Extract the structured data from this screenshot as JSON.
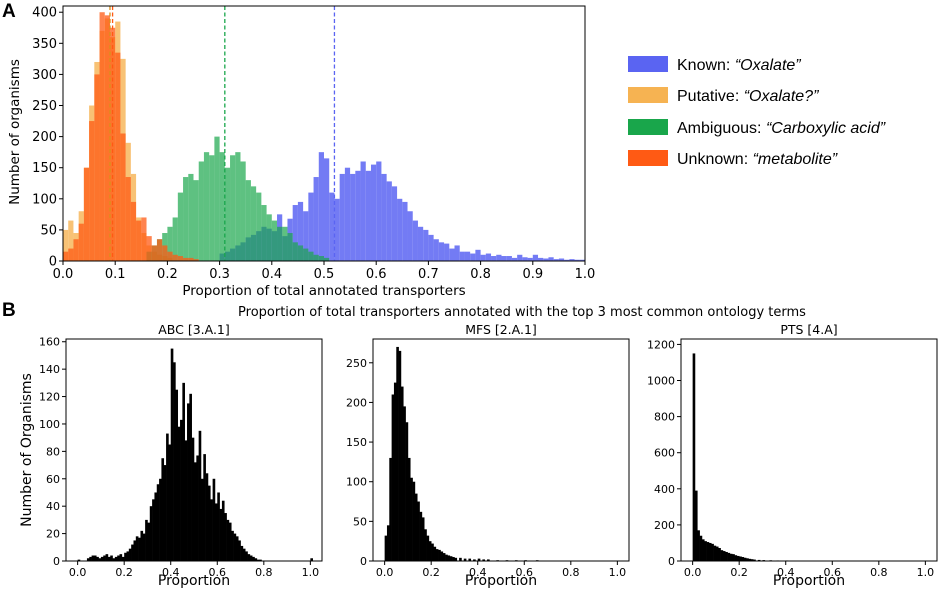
{
  "panel_a": {
    "letter": "A",
    "ylabel": "Number of organisms",
    "xlabel": "Proportion of total annotated transporters",
    "xticks": [
      "0.0",
      "0.1",
      "0.2",
      "0.3",
      "0.4",
      "0.5",
      "0.6",
      "0.7",
      "0.8",
      "0.9",
      "1.0"
    ],
    "yticks": [
      "0",
      "50",
      "100",
      "150",
      "200",
      "250",
      "300",
      "350",
      "400"
    ],
    "legend": [
      {
        "prefix": "Known: ",
        "term": "“Oxalate”",
        "color": "#5a64f2"
      },
      {
        "prefix": "Putative: ",
        "term": "“Oxalate?”",
        "color": "#f6b352"
      },
      {
        "prefix": "Ambiguous: ",
        "term": "“Carboxylic acid”",
        "color": "#19a64b"
      },
      {
        "prefix": "Unknown: ",
        "term": "“metabolite”",
        "color": "#ff5a14"
      }
    ]
  },
  "panel_b": {
    "letter": "B",
    "suptitle": "Proportion of total transporters annotated with the top 3 most common ontology terms",
    "ylabel": "Number of Organisms",
    "xlabel": "Proportion",
    "xticks": [
      "0.0",
      "0.2",
      "0.4",
      "0.6",
      "0.8",
      "1.0"
    ],
    "subplots": [
      {
        "title": "ABC [3.A.1]",
        "yticks": [
          "0",
          "20",
          "40",
          "60",
          "80",
          "100",
          "120",
          "140",
          "160"
        ]
      },
      {
        "title": "MFS [2.A.1]",
        "yticks": [
          "0",
          "50",
          "100",
          "150",
          "200",
          "250"
        ]
      },
      {
        "title": "PTS [4.A]",
        "yticks": [
          "0",
          "200",
          "400",
          "600",
          "800",
          "1000",
          "1200"
        ]
      }
    ]
  },
  "chart_data": [
    {
      "type": "bar",
      "subtype": "overlapping-histogram",
      "xlabel": "Proportion of total annotated transporters",
      "ylabel": "Number of organisms",
      "xlim": [
        0,
        1
      ],
      "ylim": [
        0,
        410
      ],
      "grid": false,
      "legend_position": "right",
      "bin_width": 0.01,
      "series": [
        {
          "name": "Known: “Oxalate”",
          "color": "#5a64f2",
          "mean": 0.52,
          "x": [
            0.3,
            0.31,
            0.32,
            0.33,
            0.34,
            0.35,
            0.36,
            0.37,
            0.38,
            0.39,
            0.4,
            0.41,
            0.42,
            0.43,
            0.44,
            0.45,
            0.46,
            0.47,
            0.48,
            0.49,
            0.5,
            0.51,
            0.52,
            0.53,
            0.54,
            0.55,
            0.56,
            0.57,
            0.58,
            0.59,
            0.6,
            0.61,
            0.62,
            0.63,
            0.64,
            0.65,
            0.66,
            0.67,
            0.68,
            0.69,
            0.7,
            0.71,
            0.72,
            0.73,
            0.74,
            0.75,
            0.76,
            0.77,
            0.78,
            0.79,
            0.8,
            0.81,
            0.82,
            0.83,
            0.84,
            0.85,
            0.86,
            0.87,
            0.88,
            0.89,
            0.9,
            0.91,
            0.92,
            0.93,
            0.94,
            0.95,
            0.96,
            0.97,
            0.98,
            0.99
          ],
          "values": [
            12,
            15,
            20,
            25,
            30,
            38,
            42,
            48,
            55,
            52,
            48,
            75,
            40,
            68,
            90,
            95,
            80,
            110,
            135,
            175,
            165,
            110,
            100,
            140,
            150,
            140,
            145,
            160,
            145,
            155,
            160,
            140,
            128,
            120,
            100,
            95,
            80,
            65,
            55,
            50,
            42,
            35,
            30,
            28,
            20,
            25,
            15,
            15,
            12,
            18,
            10,
            12,
            8,
            10,
            8,
            8,
            5,
            10,
            6,
            5,
            10,
            5,
            4,
            6,
            3,
            4,
            2,
            3,
            2,
            2
          ]
        },
        {
          "name": "Putative: “Oxalate?”",
          "color": "#f6b352",
          "mean": 0.09,
          "x": [
            0.0,
            0.01,
            0.02,
            0.03,
            0.04,
            0.05,
            0.06,
            0.07,
            0.08,
            0.09,
            0.1,
            0.11,
            0.12,
            0.13,
            0.14,
            0.15,
            0.16,
            0.17,
            0.18,
            0.19,
            0.2
          ],
          "values": [
            50,
            65,
            45,
            80,
            150,
            250,
            320,
            370,
            390,
            360,
            385,
            325,
            190,
            140,
            70,
            45,
            25,
            15,
            10,
            8,
            5
          ]
        },
        {
          "name": "Ambiguous: “Carboxylic acid”",
          "color": "#19a64b",
          "mean": 0.31,
          "x": [
            0.16,
            0.17,
            0.18,
            0.19,
            0.2,
            0.21,
            0.22,
            0.23,
            0.24,
            0.25,
            0.26,
            0.27,
            0.28,
            0.29,
            0.3,
            0.31,
            0.32,
            0.33,
            0.34,
            0.35,
            0.36,
            0.37,
            0.38,
            0.39,
            0.4,
            0.41,
            0.42,
            0.43,
            0.44,
            0.45,
            0.46,
            0.47,
            0.48,
            0.49,
            0.5
          ],
          "values": [
            15,
            25,
            35,
            45,
            55,
            70,
            110,
            135,
            140,
            130,
            160,
            175,
            170,
            200,
            175,
            150,
            170,
            175,
            160,
            130,
            120,
            110,
            90,
            75,
            65,
            55,
            55,
            45,
            30,
            25,
            20,
            15,
            10,
            8,
            5
          ]
        },
        {
          "name": "Unknown: “metabolite”",
          "color": "#ff5a14",
          "mean": 0.095,
          "x": [
            0.0,
            0.01,
            0.02,
            0.03,
            0.04,
            0.05,
            0.06,
            0.07,
            0.08,
            0.09,
            0.1,
            0.11,
            0.12,
            0.13,
            0.14,
            0.15,
            0.16,
            0.17,
            0.18,
            0.19,
            0.2,
            0.21,
            0.22,
            0.23,
            0.24,
            0.25
          ],
          "values": [
            15,
            20,
            35,
            60,
            150,
            225,
            300,
            400,
            395,
            375,
            335,
            205,
            135,
            95,
            65,
            70,
            40,
            25,
            35,
            25,
            15,
            10,
            8,
            5,
            5,
            3
          ]
        }
      ]
    },
    {
      "type": "bar",
      "subtype": "histogram",
      "title": "ABC [3.A.1]",
      "xlabel": "Proportion",
      "ylabel": "Number of Organisms",
      "xlim": [
        -0.05,
        1.05
      ],
      "ylim": [
        0,
        162
      ],
      "color": "#000000",
      "bin_width": 0.01,
      "x": [
        0.0,
        0.04,
        0.05,
        0.06,
        0.07,
        0.08,
        0.09,
        0.1,
        0.11,
        0.12,
        0.13,
        0.14,
        0.15,
        0.16,
        0.17,
        0.18,
        0.19,
        0.2,
        0.21,
        0.22,
        0.23,
        0.24,
        0.25,
        0.26,
        0.27,
        0.28,
        0.29,
        0.3,
        0.31,
        0.32,
        0.33,
        0.34,
        0.35,
        0.36,
        0.37,
        0.38,
        0.39,
        0.4,
        0.41,
        0.42,
        0.43,
        0.44,
        0.45,
        0.46,
        0.47,
        0.48,
        0.49,
        0.5,
        0.51,
        0.52,
        0.53,
        0.54,
        0.55,
        0.56,
        0.57,
        0.58,
        0.59,
        0.6,
        0.61,
        0.62,
        0.63,
        0.64,
        0.65,
        0.66,
        0.67,
        0.68,
        0.69,
        0.7,
        0.71,
        0.72,
        0.73,
        0.74,
        0.75,
        0.76,
        0.77,
        0.78,
        1.0
      ],
      "values": [
        1,
        2,
        3,
        4,
        4,
        3,
        2,
        3,
        4,
        5,
        3,
        4,
        2,
        3,
        4,
        5,
        3,
        6,
        7,
        9,
        12,
        15,
        18,
        17,
        22,
        20,
        30,
        28,
        40,
        45,
        50,
        56,
        60,
        75,
        70,
        93,
        85,
        155,
        145,
        125,
        98,
        103,
        130,
        88,
        115,
        122,
        90,
        72,
        77,
        95,
        60,
        78,
        64,
        55,
        45,
        60,
        42,
        50,
        38,
        44,
        35,
        30,
        28,
        22,
        20,
        18,
        15,
        11,
        9,
        7,
        5,
        4,
        3,
        2,
        1,
        1,
        2
      ]
    },
    {
      "type": "bar",
      "subtype": "histogram",
      "title": "MFS [2.A.1]",
      "xlabel": "Proportion",
      "ylabel": "",
      "xlim": [
        -0.05,
        1.05
      ],
      "ylim": [
        0,
        280
      ],
      "color": "#000000",
      "bin_width": 0.01,
      "x": [
        0.0,
        0.01,
        0.02,
        0.03,
        0.04,
        0.05,
        0.06,
        0.07,
        0.08,
        0.09,
        0.1,
        0.11,
        0.12,
        0.13,
        0.14,
        0.15,
        0.16,
        0.17,
        0.18,
        0.19,
        0.2,
        0.21,
        0.22,
        0.23,
        0.24,
        0.25,
        0.26,
        0.27,
        0.28,
        0.29,
        0.3,
        0.32,
        0.34,
        0.36,
        0.38,
        0.4,
        0.42,
        0.44,
        0.48,
        0.52,
        0.56,
        0.6,
        0.65
      ],
      "values": [
        32,
        45,
        130,
        210,
        225,
        270,
        265,
        220,
        195,
        175,
        130,
        105,
        100,
        85,
        75,
        62,
        55,
        40,
        32,
        25,
        22,
        18,
        15,
        14,
        12,
        10,
        8,
        7,
        6,
        5,
        4,
        4,
        3,
        3,
        2,
        3,
        2,
        2,
        1,
        1,
        1,
        1,
        1
      ]
    },
    {
      "type": "bar",
      "subtype": "histogram",
      "title": "PTS [4.A]",
      "xlabel": "Proportion",
      "ylabel": "",
      "xlim": [
        -0.05,
        1.05
      ],
      "ylim": [
        0,
        1230
      ],
      "color": "#000000",
      "bin_width": 0.01,
      "x": [
        0.0,
        0.01,
        0.02,
        0.03,
        0.04,
        0.05,
        0.06,
        0.07,
        0.08,
        0.09,
        0.1,
        0.11,
        0.12,
        0.13,
        0.14,
        0.15,
        0.16,
        0.17,
        0.18,
        0.19,
        0.2,
        0.21,
        0.22,
        0.23,
        0.24,
        0.25,
        0.26,
        0.28,
        0.3,
        0.33,
        0.36,
        0.4,
        0.45,
        0.52
      ],
      "values": [
        1150,
        390,
        170,
        140,
        120,
        110,
        105,
        100,
        95,
        85,
        80,
        72,
        60,
        55,
        50,
        45,
        40,
        38,
        32,
        28,
        25,
        22,
        18,
        15,
        12,
        10,
        8,
        6,
        5,
        4,
        3,
        3,
        2,
        1
      ]
    }
  ]
}
